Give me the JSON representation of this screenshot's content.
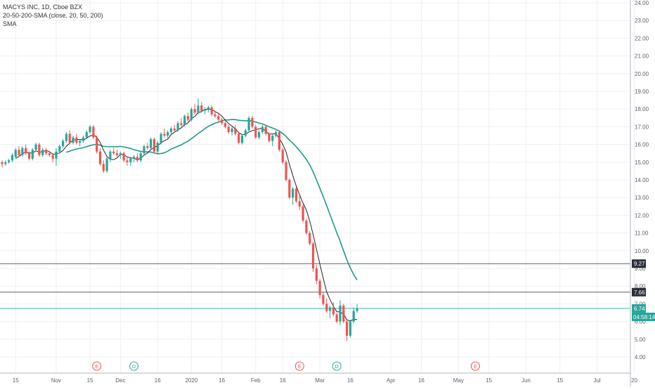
{
  "legend": {
    "line1": "MACYS INC, 1D, Cboe BZX",
    "line2": "20-50-200-SMA (close, 20, 50, 200)",
    "line3": "SMA"
  },
  "colors": {
    "up": "#26a69a",
    "down": "#ef5350",
    "sma20": "#222222",
    "sma50": "#21998a",
    "grid": "#eef0f3",
    "axis": "#b2b5be",
    "hline": "#5d606b",
    "price_line": "#26a69a"
  },
  "chart_data": {
    "type": "candlestick",
    "ylim": [
      3.4,
      24.2
    ],
    "y_ticks": [
      "4.00",
      "5.00",
      "6.00",
      "7.00",
      "8.00",
      "9.00",
      "10.00",
      "11.00",
      "12.00",
      "13.00",
      "14.00",
      "15.00",
      "16.00",
      "17.00",
      "18.00",
      "19.00",
      "20.00",
      "21.00",
      "22.00",
      "23.00",
      "24.00"
    ],
    "x_ticks": [
      {
        "label": "15",
        "day": 4
      },
      {
        "label": "Nov",
        "day": 16
      },
      {
        "label": "15",
        "day": 26
      },
      {
        "label": "Dec",
        "day": 35
      },
      {
        "label": "16",
        "day": 46
      },
      {
        "label": "2020",
        "day": 56
      },
      {
        "label": "16",
        "day": 65
      },
      {
        "label": "Feb",
        "day": 75
      },
      {
        "label": "16",
        "day": 83
      },
      {
        "label": "Mar",
        "day": 94
      },
      {
        "label": "16",
        "day": 103
      },
      {
        "label": "Apr",
        "day": 115
      },
      {
        "label": "16",
        "day": 124
      },
      {
        "label": "May",
        "day": 135
      },
      {
        "label": "15",
        "day": 144
      },
      {
        "label": "Jun",
        "day": 155
      },
      {
        "label": "15",
        "day": 165
      },
      {
        "label": "Jul",
        "day": 176
      },
      {
        "label": "20",
        "day": 187
      }
    ],
    "candles": [
      [
        15.0,
        15.1,
        14.7,
        14.9
      ],
      [
        14.9,
        15.1,
        14.8,
        15.0
      ],
      [
        15.0,
        15.2,
        14.9,
        15.1
      ],
      [
        15.1,
        15.5,
        15.0,
        15.4
      ],
      [
        15.3,
        15.8,
        15.2,
        15.7
      ],
      [
        15.7,
        15.9,
        15.3,
        15.4
      ],
      [
        15.4,
        15.9,
        15.3,
        15.8
      ],
      [
        15.8,
        16.0,
        15.4,
        15.5
      ],
      [
        15.5,
        15.6,
        15.1,
        15.2
      ],
      [
        15.2,
        15.8,
        15.1,
        15.7
      ],
      [
        15.7,
        16.1,
        15.6,
        16.0
      ],
      [
        16.0,
        16.1,
        15.3,
        15.4
      ],
      [
        15.4,
        15.8,
        15.3,
        15.7
      ],
      [
        15.7,
        15.8,
        15.4,
        15.5
      ],
      [
        15.5,
        15.6,
        15.3,
        15.4
      ],
      [
        15.4,
        15.5,
        15.0,
        15.2
      ],
      [
        15.2,
        15.8,
        14.8,
        15.6
      ],
      [
        15.6,
        16.0,
        15.5,
        15.9
      ],
      [
        15.9,
        16.3,
        15.8,
        16.2
      ],
      [
        16.2,
        16.7,
        16.1,
        16.6
      ],
      [
        16.6,
        16.8,
        16.0,
        16.1
      ],
      [
        16.1,
        16.5,
        16.0,
        16.4
      ],
      [
        16.4,
        16.6,
        16.0,
        16.1
      ],
      [
        16.1,
        16.3,
        15.9,
        16.2
      ],
      [
        16.2,
        16.5,
        16.1,
        16.4
      ],
      [
        16.4,
        16.8,
        16.3,
        16.7
      ],
      [
        16.7,
        17.1,
        16.6,
        17.0
      ],
      [
        17.0,
        17.1,
        16.3,
        16.4
      ],
      [
        16.4,
        16.5,
        15.5,
        15.6
      ],
      [
        15.6,
        15.8,
        14.8,
        14.9
      ],
      [
        14.9,
        15.1,
        14.4,
        14.5
      ],
      [
        14.5,
        15.3,
        14.4,
        15.2
      ],
      [
        15.2,
        15.7,
        15.0,
        15.6
      ],
      [
        15.6,
        15.8,
        15.4,
        15.5
      ],
      [
        15.5,
        15.7,
        15.3,
        15.4
      ],
      [
        15.4,
        15.6,
        15.2,
        15.5
      ],
      [
        15.5,
        15.6,
        15.0,
        15.1
      ],
      [
        15.1,
        15.3,
        14.8,
        15.0
      ],
      [
        15.0,
        15.3,
        14.8,
        15.2
      ],
      [
        15.2,
        15.4,
        15.0,
        15.3
      ],
      [
        15.3,
        15.5,
        15.0,
        15.1
      ],
      [
        15.1,
        15.6,
        15.0,
        15.5
      ],
      [
        15.5,
        16.0,
        15.4,
        15.9
      ],
      [
        15.9,
        16.1,
        15.7,
        15.8
      ],
      [
        15.8,
        16.4,
        15.7,
        16.3
      ],
      [
        16.3,
        16.4,
        15.5,
        15.6
      ],
      [
        15.6,
        16.2,
        15.5,
        16.1
      ],
      [
        16.1,
        16.7,
        16.0,
        16.6
      ],
      [
        16.6,
        16.9,
        16.4,
        16.5
      ],
      [
        16.5,
        16.8,
        16.3,
        16.7
      ],
      [
        16.7,
        17.0,
        16.6,
        16.9
      ],
      [
        16.9,
        17.1,
        16.7,
        16.8
      ],
      [
        16.8,
        17.3,
        16.7,
        17.2
      ],
      [
        17.2,
        17.5,
        17.0,
        17.1
      ],
      [
        17.1,
        17.7,
        17.0,
        17.6
      ],
      [
        17.6,
        17.8,
        17.3,
        17.4
      ],
      [
        17.4,
        18.1,
        17.3,
        18.0
      ],
      [
        18.0,
        18.3,
        17.7,
        17.8
      ],
      [
        17.8,
        18.6,
        17.7,
        18.2
      ],
      [
        18.2,
        18.4,
        17.8,
        17.9
      ],
      [
        17.9,
        18.1,
        17.7,
        18.0
      ],
      [
        18.0,
        18.2,
        17.8,
        18.1
      ],
      [
        18.1,
        18.2,
        17.6,
        17.7
      ],
      [
        17.7,
        17.9,
        17.5,
        17.6
      ],
      [
        17.6,
        17.8,
        17.3,
        17.4
      ],
      [
        17.4,
        17.5,
        17.1,
        17.2
      ],
      [
        17.2,
        17.3,
        16.9,
        17.0
      ],
      [
        17.0,
        17.1,
        16.6,
        16.7
      ],
      [
        16.7,
        17.0,
        16.5,
        16.9
      ],
      [
        16.9,
        17.1,
        16.5,
        16.6
      ],
      [
        16.6,
        16.7,
        16.0,
        16.1
      ],
      [
        16.1,
        16.6,
        16.0,
        16.5
      ],
      [
        16.5,
        16.9,
        16.4,
        16.8
      ],
      [
        16.8,
        17.6,
        16.7,
        17.5
      ],
      [
        17.5,
        17.6,
        16.9,
        17.0
      ],
      [
        17.0,
        17.1,
        16.3,
        16.4
      ],
      [
        16.4,
        16.8,
        16.3,
        16.7
      ],
      [
        16.7,
        17.1,
        16.6,
        17.0
      ],
      [
        17.0,
        17.1,
        16.5,
        16.6
      ],
      [
        16.6,
        16.7,
        16.1,
        16.2
      ],
      [
        16.2,
        16.6,
        15.9,
        16.5
      ],
      [
        16.5,
        16.8,
        16.4,
        16.7
      ],
      [
        16.7,
        16.8,
        15.6,
        15.7
      ],
      [
        15.7,
        15.8,
        14.9,
        15.0
      ],
      [
        15.0,
        15.1,
        13.9,
        14.0
      ],
      [
        14.0,
        14.1,
        12.9,
        13.0
      ],
      [
        13.0,
        13.6,
        12.6,
        13.5
      ],
      [
        13.5,
        13.6,
        12.7,
        12.8
      ],
      [
        12.8,
        13.1,
        12.3,
        12.5
      ],
      [
        12.5,
        12.6,
        11.6,
        11.7
      ],
      [
        11.7,
        11.8,
        10.9,
        11.0
      ],
      [
        11.0,
        11.1,
        10.3,
        10.4
      ],
      [
        10.4,
        10.5,
        8.8,
        9.0
      ],
      [
        9.0,
        9.2,
        8.1,
        8.3
      ],
      [
        8.3,
        8.4,
        7.3,
        7.5
      ],
      [
        7.5,
        7.7,
        6.9,
        7.0
      ],
      [
        7.0,
        7.3,
        6.5,
        6.6
      ],
      [
        6.6,
        6.9,
        6.2,
        6.8
      ],
      [
        6.8,
        7.1,
        6.3,
        6.4
      ],
      [
        6.4,
        6.5,
        5.9,
        6.0
      ],
      [
        6.0,
        7.2,
        5.8,
        6.9
      ],
      [
        6.9,
        7.0,
        5.9,
        6.0
      ],
      [
        6.0,
        6.1,
        4.9,
        5.2
      ],
      [
        5.2,
        6.1,
        5.1,
        6.0
      ],
      [
        6.0,
        6.8,
        5.9,
        6.6
      ],
      [
        6.6,
        7.0,
        6.5,
        6.74
      ]
    ],
    "hlines": [
      {
        "value": 9.27,
        "label": "9.27"
      },
      {
        "value": 7.66,
        "label": "7.66"
      }
    ],
    "last_price": {
      "value": 6.74,
      "label": "6.74",
      "countdown": "04:58:14"
    },
    "events": [
      {
        "day": 28,
        "letter": "E",
        "color": "#ef5350"
      },
      {
        "day": 39,
        "letter": "D",
        "color": "#26a69a"
      },
      {
        "day": 88,
        "letter": "E",
        "color": "#ef5350"
      },
      {
        "day": 99,
        "letter": "D",
        "color": "#26a69a"
      },
      {
        "day": 140,
        "letter": "E",
        "color": "#ef5350"
      }
    ]
  }
}
